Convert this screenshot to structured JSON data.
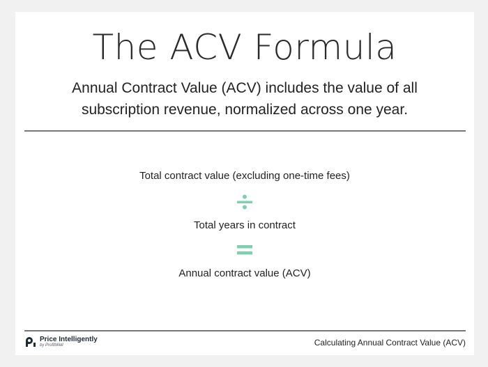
{
  "title": "The ACV Formula",
  "subtitle": "Annual Contract Value (ACV) includes the value of all subscription revenue, normalized across one year.",
  "formula": {
    "numerator": "Total contract value (excluding one-time fees)",
    "divide_icon": "divide-icon",
    "denominator": "Total years in contract",
    "equals_icon": "equals-icon",
    "result": "Annual contract value (ACV)",
    "accent_color": "#7fcfb0"
  },
  "footer": {
    "brand": "Price Intelligently",
    "brand_sub": "by ProfitWell",
    "caption": "Calculating Annual Contract Value (ACV)"
  }
}
